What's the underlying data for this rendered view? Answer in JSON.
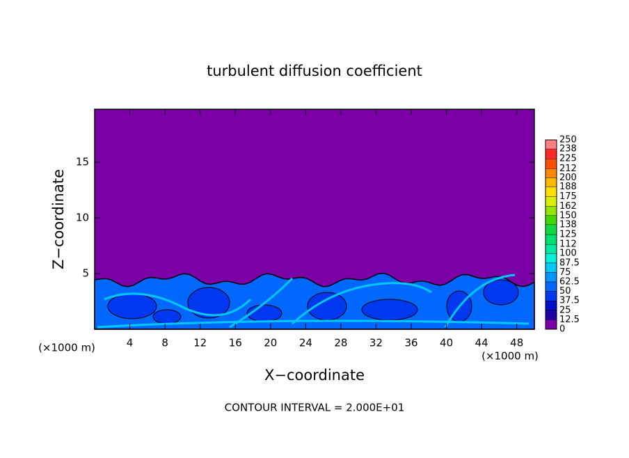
{
  "chart_data": {
    "type": "contour",
    "title": "turbulent diffusion coefficient",
    "x_label": "X−coordinate",
    "y_label": "Z−coordinate",
    "x_unit_left": "(×1000 m)",
    "x_unit_right": "(×1000 m)",
    "footer": "CONTOUR INTERVAL = 2.000E+01",
    "xlim": [
      0,
      50
    ],
    "xticks": [
      4,
      8,
      12,
      16,
      20,
      24,
      28,
      32,
      36,
      40,
      44,
      48
    ],
    "ylim": [
      0,
      19.75
    ],
    "yticks": [
      5,
      10,
      15
    ],
    "colorbar": {
      "levels": [
        0,
        12.5,
        25,
        37.5,
        50,
        62.5,
        75,
        87.5,
        100,
        112,
        125,
        138,
        150,
        162,
        175,
        188,
        200,
        212,
        225,
        238,
        250
      ],
      "colors": [
        "#7b00a5",
        "#2200a8",
        "#0010c8",
        "#0038f0",
        "#0068ff",
        "#0098ff",
        "#00c8f8",
        "#00f0d8",
        "#00e8a0",
        "#00e070",
        "#10d840",
        "#40d800",
        "#90e800",
        "#d8f000",
        "#ffe000",
        "#ffb800",
        "#ff8800",
        "#ff5000",
        "#ff2828",
        "#ff8080"
      ]
    }
  }
}
